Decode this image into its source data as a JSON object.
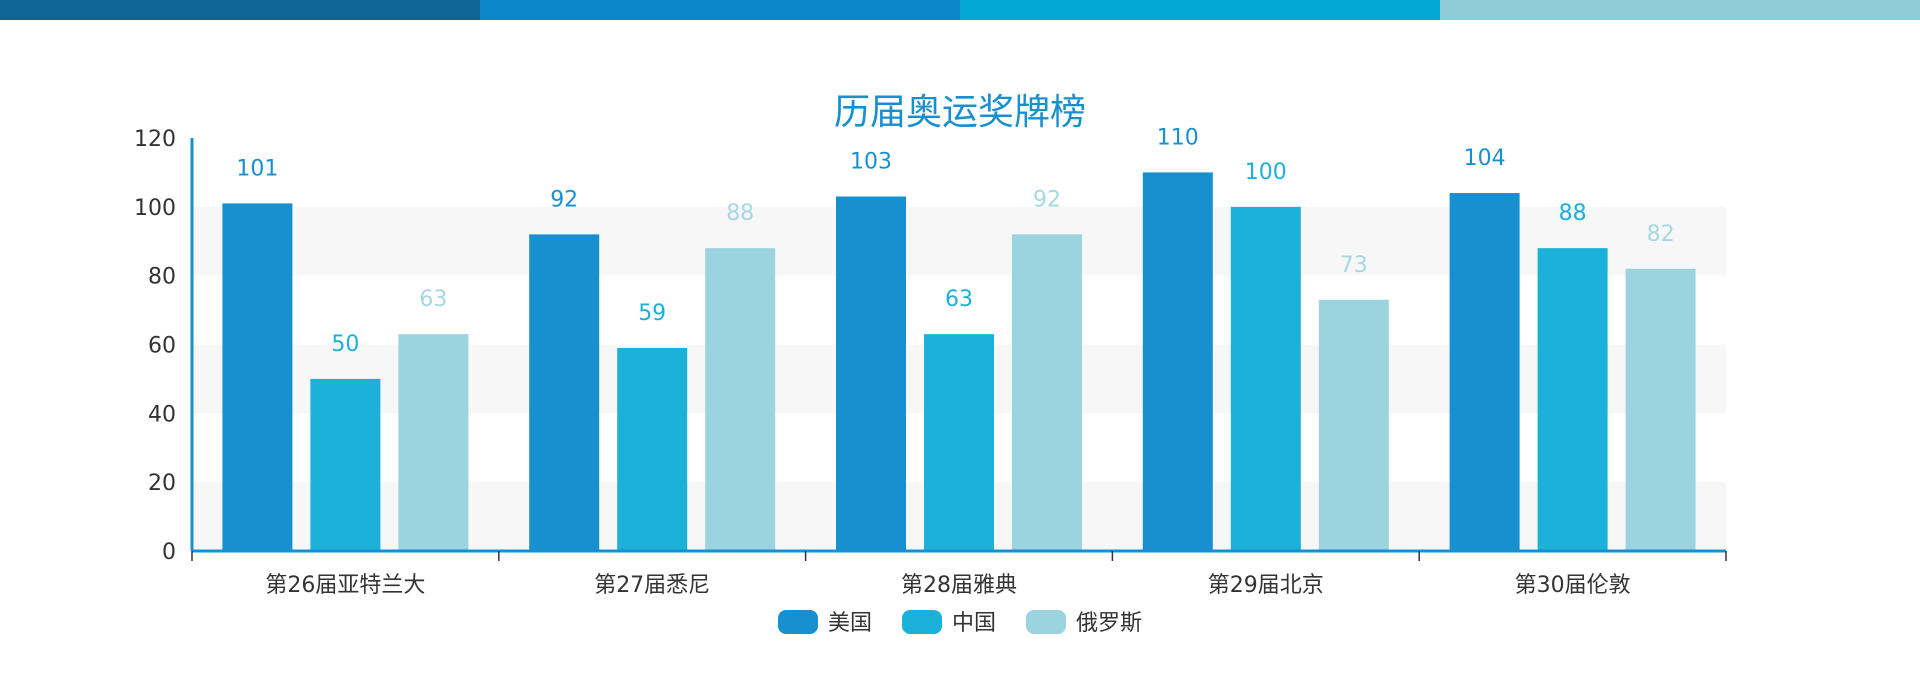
{
  "top_bar": {
    "colors": [
      "#0f6696",
      "#0b86c8",
      "#03a8d6",
      "#8ecad7"
    ]
  },
  "chart_data": {
    "type": "bar",
    "title": "历届奥运奖牌榜",
    "categories": [
      "第26届亚特兰大",
      "第27届悉尼",
      "第28届雅典",
      "第29届北京",
      "第30届伦敦"
    ],
    "series": [
      {
        "name": "美国",
        "values": [
          101,
          92,
          103,
          110,
          104
        ],
        "color": "#1890d0",
        "label_color": "#1890d0"
      },
      {
        "name": "中国",
        "values": [
          50,
          59,
          63,
          100,
          88
        ],
        "color": "#1cb1d8",
        "label_color": "#1cb1d8"
      },
      {
        "name": "俄罗斯",
        "values": [
          63,
          88,
          92,
          73,
          82
        ],
        "color": "#9bd3df",
        "label_color": "#a6d8e3"
      }
    ],
    "ylim": [
      0,
      120
    ],
    "yticks": [
      0,
      20,
      40,
      60,
      80,
      100,
      120
    ],
    "xlabel": "",
    "ylabel": "",
    "grid": "alternating bands",
    "legend": "bottom-center",
    "colors": {
      "title": "#1890d0",
      "axis": "#1890d0",
      "band": "#f7f7f7"
    }
  }
}
